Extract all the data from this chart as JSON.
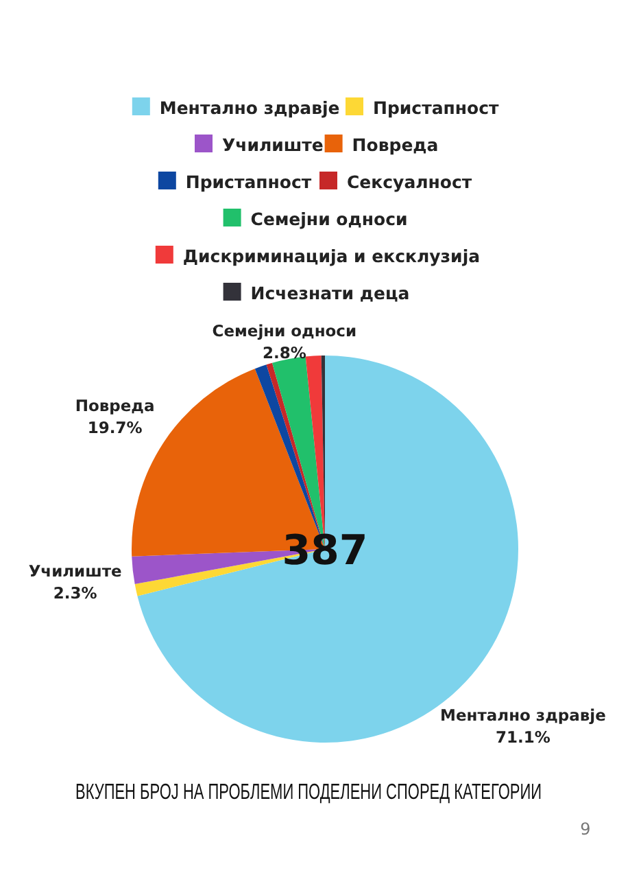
{
  "chart_data": {
    "type": "pie",
    "title": "ВКУПЕН БРОЈ НА ПРОБЛЕМИ ПОДЕЛЕНИ СПОРЕД КАТЕГОРИИ",
    "categories": [
      "Ментално здравје",
      "Пристапност",
      "Училиште",
      "Повреда",
      "Пристапност",
      "Сексуалност",
      "Семејни односи",
      "Дискриминација и ексклузија",
      "Исчезнати деца"
    ],
    "values": [
      71.1,
      1.0,
      2.3,
      19.7,
      1.0,
      0.5,
      2.8,
      1.3,
      0.3
    ],
    "colors": [
      "#7dd3ec",
      "#fdd835",
      "#9c55c9",
      "#e8630a",
      "#0d47a1",
      "#c62828",
      "#21c06b",
      "#f03a3a",
      "#33323a"
    ],
    "value_labels": [
      "71.1%",
      null,
      "2.3%",
      "19.7%",
      null,
      null,
      "2.8%",
      null,
      null
    ],
    "annotations": [
      "387",
      "9"
    ],
    "legend": "top"
  }
}
